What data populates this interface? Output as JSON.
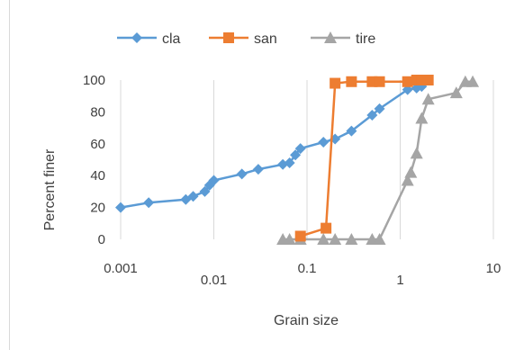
{
  "chart_data": {
    "type": "line",
    "xlabel": "Grain size",
    "ylabel": "Percent finer",
    "xscale": "log",
    "xlim": [
      0.001,
      10
    ],
    "ylim": [
      0,
      100
    ],
    "x_ticks": [
      "0.001",
      "0.01",
      "0.1",
      "1",
      "10"
    ],
    "y_ticks": [
      "0",
      "20",
      "40",
      "60",
      "80",
      "100"
    ],
    "grid": "vertical",
    "legend": "top",
    "series": [
      {
        "name": "cla",
        "color": "#5b9bd5",
        "marker": "diamond",
        "points": [
          [
            0.001,
            20
          ],
          [
            0.002,
            23
          ],
          [
            0.005,
            25
          ],
          [
            0.006,
            27
          ],
          [
            0.008,
            30
          ],
          [
            0.009,
            34
          ],
          [
            0.01,
            37
          ],
          [
            0.02,
            41
          ],
          [
            0.03,
            44
          ],
          [
            0.055,
            47
          ],
          [
            0.065,
            48
          ],
          [
            0.075,
            53
          ],
          [
            0.085,
            57
          ],
          [
            0.15,
            61
          ],
          [
            0.2,
            63
          ],
          [
            0.3,
            68
          ],
          [
            0.5,
            78
          ],
          [
            0.6,
            82
          ],
          [
            1.2,
            94
          ],
          [
            1.5,
            95
          ],
          [
            1.7,
            96
          ]
        ]
      },
      {
        "name": "san",
        "color": "#ed7d31",
        "marker": "square",
        "points": [
          [
            0.085,
            2
          ],
          [
            0.16,
            7
          ],
          [
            0.2,
            98
          ],
          [
            0.3,
            99
          ],
          [
            0.5,
            99
          ],
          [
            0.6,
            99
          ],
          [
            1.2,
            99
          ],
          [
            1.5,
            100
          ],
          [
            1.7,
            100
          ],
          [
            2,
            100
          ]
        ]
      },
      {
        "name": "tire",
        "color": "#a5a5a5",
        "marker": "triangle",
        "points": [
          [
            0.055,
            0
          ],
          [
            0.065,
            0
          ],
          [
            0.085,
            0
          ],
          [
            0.15,
            0
          ],
          [
            0.2,
            0
          ],
          [
            0.3,
            0
          ],
          [
            0.5,
            0
          ],
          [
            0.6,
            0
          ],
          [
            1.2,
            37
          ],
          [
            1.3,
            42
          ],
          [
            1.5,
            54
          ],
          [
            1.7,
            76
          ],
          [
            2,
            88
          ],
          [
            4,
            92
          ],
          [
            5,
            99
          ],
          [
            6,
            99
          ]
        ]
      }
    ]
  }
}
